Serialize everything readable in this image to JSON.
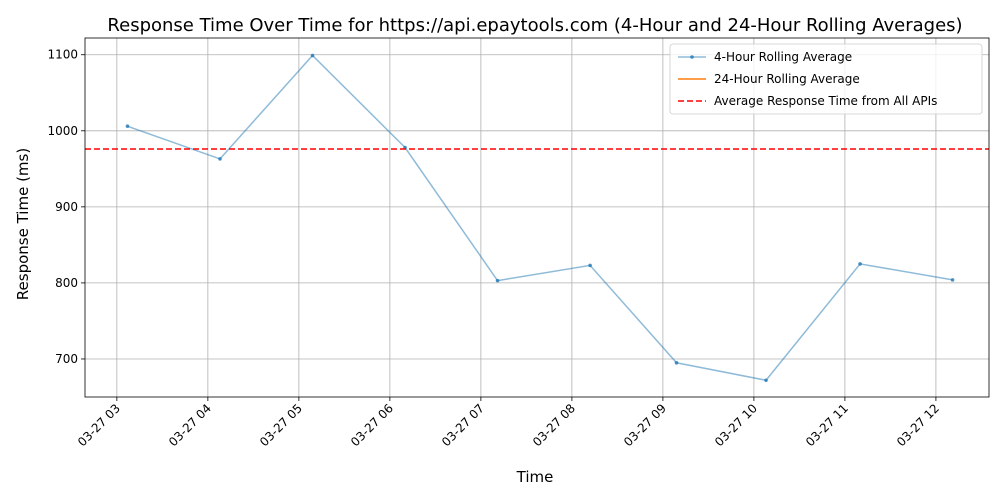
{
  "chart_data": {
    "type": "line",
    "title": "Response Time Over Time for https://api.epaytools.com (4-Hour and 24-Hour Rolling Averages)",
    "xlabel": "Time",
    "ylabel": "Response Time (ms)",
    "x_ticks": [
      "03-27 03",
      "03-27 04",
      "03-27 05",
      "03-27 06",
      "03-27 07",
      "03-27 08",
      "03-27 09",
      "03-27 10",
      "03-27 11",
      "03-27 12"
    ],
    "y_ticks": [
      700,
      800,
      900,
      1000,
      1100
    ],
    "ylim": [
      650,
      1122
    ],
    "xlim": [
      "03-27 02:39",
      "03-27 12:35"
    ],
    "grid": true,
    "legend_position": "top-right",
    "series": [
      {
        "name": "4-Hour Rolling Average",
        "color": "#1f77b4",
        "style": "solid-with-markers",
        "x": [
          "03-27 03:07",
          "03-27 04:08",
          "03-27 05:09",
          "03-27 06:10",
          "03-27 07:11",
          "03-27 08:12",
          "03-27 09:09",
          "03-27 10:08",
          "03-27 11:10",
          "03-27 12:11"
        ],
        "y": [
          1006,
          963,
          1099,
          978,
          803,
          823,
          695,
          672,
          825,
          804
        ]
      },
      {
        "name": "24-Hour Rolling Average",
        "color": "#ff7f0e",
        "style": "solid",
        "x": [],
        "y": []
      },
      {
        "name": "Average Response Time from All APIs",
        "color": "#ff0000",
        "style": "dashed-horizontal",
        "value": 976
      }
    ]
  }
}
